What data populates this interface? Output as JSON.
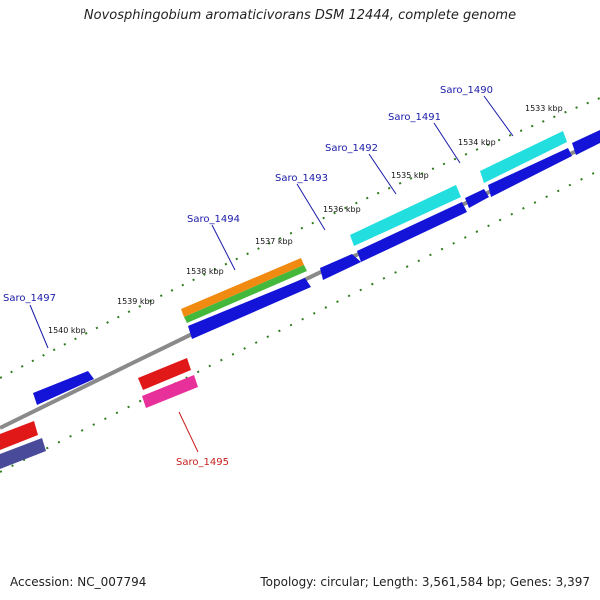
{
  "title": "Novosphingobium aromaticivorans DSM 12444, complete genome",
  "accession_text": "Accession: NC_007794",
  "topology_text": "Topology: circular; Length: 3,561,584 bp; Genes: 3,397",
  "ticks": [
    "1533 kbp",
    "1534 kbp",
    "1535 kbp",
    "1536 kbp",
    "1537 kbp",
    "1538 kbp",
    "1539 kbp",
    "1540 kbp"
  ],
  "gene_labels": [
    "Saro_1490",
    "Saro_1491",
    "Saro_1492",
    "Saro_1493",
    "Saro_1494",
    "Saro_1495",
    "Saro_1497"
  ],
  "colors": {
    "forward_label": "#1a1aa8",
    "reverse_label": "#c81e1e",
    "backbone": "#8a8a8a",
    "tick_marks": "#2e7d1e",
    "cds_blue": "#1414d8",
    "cds_cyan": "#22dede",
    "cds_orange": "#f08a10",
    "cds_green": "#44b83a",
    "cds_red": "#e01818",
    "cds_pink": "#e8309a",
    "cds_slate": "#4a4a9a"
  }
}
